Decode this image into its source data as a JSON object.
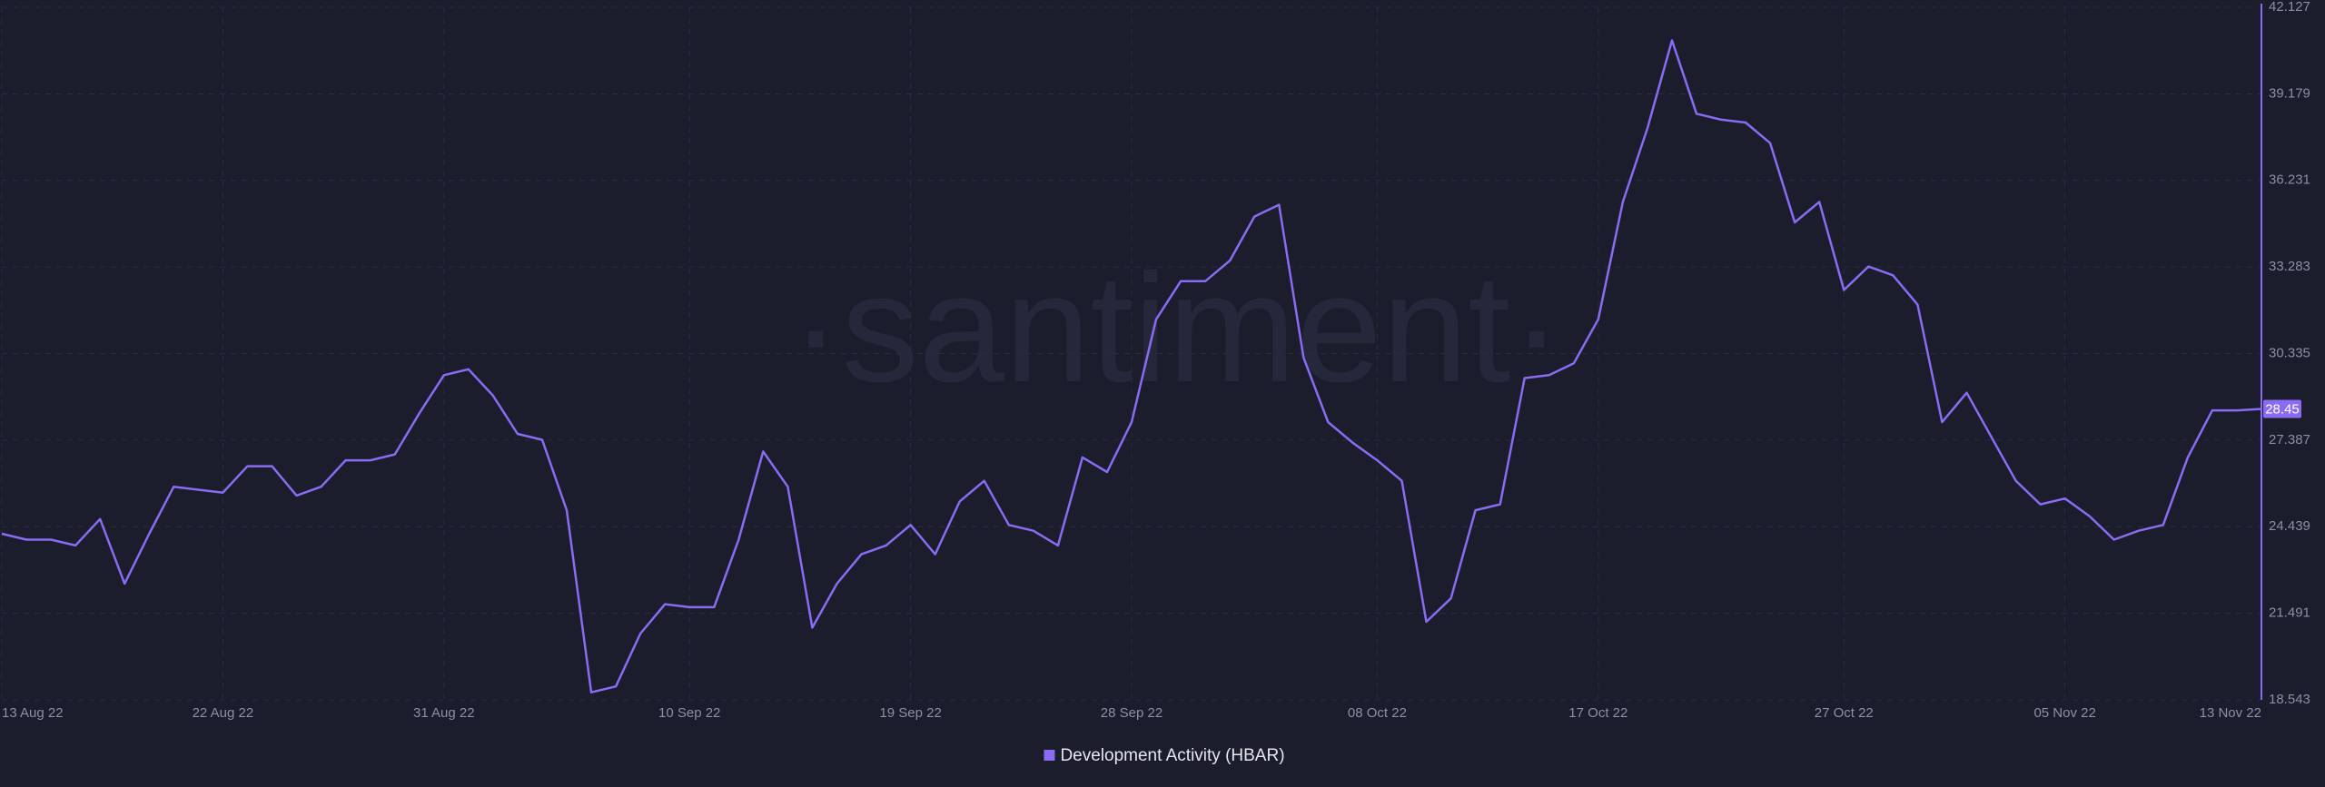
{
  "chart_data": {
    "type": "line",
    "watermark": "·santiment·",
    "x": [
      "2022-08-13",
      "2022-08-14",
      "2022-08-15",
      "2022-08-16",
      "2022-08-17",
      "2022-08-18",
      "2022-08-19",
      "2022-08-20",
      "2022-08-21",
      "2022-08-22",
      "2022-08-23",
      "2022-08-24",
      "2022-08-25",
      "2022-08-26",
      "2022-08-27",
      "2022-08-28",
      "2022-08-29",
      "2022-08-30",
      "2022-08-31",
      "2022-09-01",
      "2022-09-02",
      "2022-09-03",
      "2022-09-04",
      "2022-09-05",
      "2022-09-06",
      "2022-09-07",
      "2022-09-08",
      "2022-09-09",
      "2022-09-10",
      "2022-09-11",
      "2022-09-12",
      "2022-09-13",
      "2022-09-14",
      "2022-09-15",
      "2022-09-16",
      "2022-09-17",
      "2022-09-18",
      "2022-09-19",
      "2022-09-20",
      "2022-09-21",
      "2022-09-22",
      "2022-09-23",
      "2022-09-24",
      "2022-09-25",
      "2022-09-26",
      "2022-09-27",
      "2022-09-28",
      "2022-09-29",
      "2022-09-30",
      "2022-10-01",
      "2022-10-02",
      "2022-10-03",
      "2022-10-04",
      "2022-10-05",
      "2022-10-06",
      "2022-10-07",
      "2022-10-08",
      "2022-10-09",
      "2022-10-10",
      "2022-10-11",
      "2022-10-12",
      "2022-10-13",
      "2022-10-14",
      "2022-10-15",
      "2022-10-16",
      "2022-10-17",
      "2022-10-18",
      "2022-10-19",
      "2022-10-20",
      "2022-10-21",
      "2022-10-22",
      "2022-10-23",
      "2022-10-24",
      "2022-10-25",
      "2022-10-26",
      "2022-10-27",
      "2022-10-28",
      "2022-10-29",
      "2022-10-30",
      "2022-10-31",
      "2022-11-01",
      "2022-11-02",
      "2022-11-03",
      "2022-11-04",
      "2022-11-05",
      "2022-11-06",
      "2022-11-07",
      "2022-11-08",
      "2022-11-09",
      "2022-11-10",
      "2022-11-11",
      "2022-11-12",
      "2022-11-13"
    ],
    "series": [
      {
        "name": "Development Activity (HBAR)",
        "color": "#8a6cf2",
        "values": [
          24.2,
          24.0,
          24.0,
          23.8,
          24.7,
          22.5,
          24.2,
          25.8,
          25.7,
          25.6,
          26.5,
          26.5,
          25.5,
          25.8,
          26.7,
          26.7,
          26.9,
          28.3,
          29.6,
          29.8,
          28.9,
          27.6,
          27.4,
          25.0,
          18.8,
          19.0,
          20.8,
          21.8,
          21.7,
          21.7,
          24.0,
          27.0,
          25.8,
          21.0,
          22.5,
          23.5,
          23.8,
          24.5,
          23.5,
          25.3,
          26.0,
          24.5,
          24.3,
          23.8,
          26.8,
          26.3,
          28.0,
          31.5,
          32.8,
          32.8,
          33.5,
          35.0,
          35.4,
          30.2,
          28.0,
          27.3,
          26.7,
          26.0,
          21.2,
          22.0,
          25.0,
          25.2,
          29.5,
          29.6,
          30.0,
          31.5,
          35.5,
          38.0,
          41.0,
          38.5,
          38.3,
          38.2,
          37.5,
          34.8,
          35.5,
          32.5,
          33.3,
          33.0,
          32.0,
          28.0,
          29.0,
          27.5,
          26.0,
          25.2,
          25.4,
          24.8,
          24.0,
          24.3,
          24.5,
          26.8,
          28.4,
          28.4,
          28.45
        ]
      }
    ],
    "current_value": 28.45,
    "xlim": [
      "2022-08-13",
      "2022-11-13"
    ],
    "xticks": [
      {
        "value": "2022-08-13",
        "label": "13 Aug 22"
      },
      {
        "value": "2022-08-22",
        "label": "22 Aug 22"
      },
      {
        "value": "2022-08-31",
        "label": "31 Aug 22"
      },
      {
        "value": "2022-09-10",
        "label": "10 Sep 22"
      },
      {
        "value": "2022-09-19",
        "label": "19 Sep 22"
      },
      {
        "value": "2022-09-28",
        "label": "28 Sep 22"
      },
      {
        "value": "2022-10-08",
        "label": "08 Oct 22"
      },
      {
        "value": "2022-10-17",
        "label": "17 Oct 22"
      },
      {
        "value": "2022-10-27",
        "label": "27 Oct 22"
      },
      {
        "value": "2022-11-05",
        "label": "05 Nov 22"
      },
      {
        "value": "2022-11-13",
        "label": "13 Nov 22"
      }
    ],
    "ylim": [
      18.543,
      42.127
    ],
    "yticks": [
      18.543,
      21.491,
      24.439,
      27.387,
      30.335,
      33.283,
      36.231,
      39.179,
      42.127
    ],
    "grid": true
  }
}
